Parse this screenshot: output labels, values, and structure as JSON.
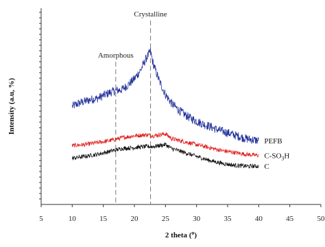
{
  "chart_data": {
    "type": "line",
    "xlabel": "2 theta (",
    "xlabel_sup": "o",
    "xlabel_end": ")",
    "ylabel": "Intensity (a.u, %)",
    "xlim": [
      5,
      50
    ],
    "x_ticks": [
      "5",
      "10",
      "15",
      "20",
      "25",
      "30",
      "35",
      "40",
      "45",
      "50"
    ],
    "grid": false,
    "legend": "labels at right end of each series",
    "annotations": [
      {
        "text": "Amorphous",
        "x": 17
      },
      {
        "text": "Crystalline",
        "x": 22.6
      }
    ],
    "series": [
      {
        "name": "PEFB",
        "color": "#1f2f9a",
        "x": [
          10,
          11,
          12,
          13,
          14,
          15,
          16,
          17,
          18,
          19,
          20,
          21,
          22,
          22.6,
          23,
          24,
          25,
          26,
          27,
          28,
          29,
          30,
          31,
          32,
          33,
          34,
          35,
          36,
          37,
          38,
          39,
          40
        ],
        "y": [
          50,
          51.5,
          52.5,
          53.5,
          54,
          55.5,
          57,
          58,
          58.5,
          61,
          64,
          68.5,
          75,
          78,
          72,
          63,
          56,
          51.5,
          48.5,
          46,
          44,
          42.5,
          41,
          40,
          38.5,
          37.5,
          36.5,
          35.5,
          34.5,
          33.5,
          33,
          32.5
        ],
        "noise": 4.5
      },
      {
        "name": "C-SO3H",
        "label_main": "C-SO",
        "label_sub": "3",
        "label_end": "H",
        "color": "#e01b1b",
        "x": [
          10,
          12,
          14,
          16,
          18,
          20,
          22,
          23,
          24,
          25,
          26,
          28,
          30,
          32,
          34,
          36,
          38,
          40
        ],
        "y": [
          30,
          30.5,
          31.5,
          32.5,
          34,
          35,
          35.5,
          35,
          35.5,
          36,
          33.5,
          32,
          30.5,
          29,
          27.5,
          26.5,
          25.5,
          25
        ],
        "noise": 2.2
      },
      {
        "name": "C",
        "color": "#111111",
        "x": [
          10,
          12,
          14,
          16,
          18,
          20,
          22,
          23,
          24,
          25,
          26,
          28,
          30,
          32,
          34,
          36,
          38,
          40
        ],
        "y": [
          23.5,
          24.5,
          25.5,
          27,
          28.5,
          29,
          29.5,
          29.5,
          30,
          30.5,
          28.5,
          26.5,
          24.5,
          22.5,
          21,
          20,
          19.5,
          19.5
        ],
        "noise": 2.2
      }
    ]
  }
}
